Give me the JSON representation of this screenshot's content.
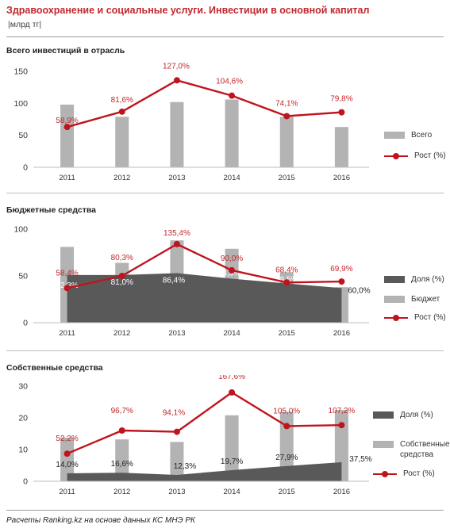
{
  "title": "Здравоохранение и социальные услуги. Инвестиции в основной капитал",
  "units": "|млрд тг|",
  "footer": "Расчеты Ranking.kz на основе данных КС МНЭ РК",
  "colors": {
    "title": "#c0282d",
    "bar": "#b3b3b3",
    "area": "#595959",
    "line": "#c0141d",
    "growth_label": "#c0282d",
    "share_label_inside": "#ffffff",
    "share_label_outside": "#222222"
  },
  "chart_data": [
    {
      "type": "bar",
      "title": "Всего инвестиций в отрасль",
      "categories": [
        "2011",
        "2012",
        "2013",
        "2014",
        "2015",
        "2016"
      ],
      "ylim": [
        0,
        150
      ],
      "yticks": [
        "0",
        "50",
        "100",
        "150"
      ],
      "legend_position": "right",
      "series": [
        {
          "name": "Всего",
          "kind": "bar",
          "values": [
            98,
            79,
            102,
            106,
            79,
            63
          ]
        },
        {
          "name": "Рост (%)",
          "kind": "line",
          "values": [
            63,
            87,
            136,
            112,
            80,
            86
          ],
          "labels": [
            "58,9%",
            "81,6%",
            "127,0%",
            "104,6%",
            "74,1%",
            "79,8%"
          ]
        }
      ]
    },
    {
      "type": "bar",
      "title": "Бюджетные средства",
      "categories": [
        "2011",
        "2012",
        "2013",
        "2014",
        "2015",
        "2016"
      ],
      "ylim": [
        0,
        100
      ],
      "yticks": [
        "0",
        "50",
        "100"
      ],
      "legend_position": "right",
      "series": [
        {
          "name": "Доля (%)",
          "kind": "area",
          "values": [
            51,
            51,
            53,
            47,
            42,
            37
          ],
          "labels": [
            "82,3%",
            "81,0%",
            "86,4%",
            "74,3%",
            "68,5%",
            "60,0%"
          ]
        },
        {
          "name": "Бюджет",
          "kind": "bar",
          "values": [
            81,
            64,
            88,
            79,
            54,
            38
          ]
        },
        {
          "name": "Рост (%)",
          "kind": "line",
          "values": [
            37,
            50,
            84,
            56,
            43,
            44
          ],
          "labels": [
            "58,4%",
            "80,3%",
            "135,4%",
            "90,0%",
            "68,4%",
            "69,9%"
          ]
        }
      ]
    },
    {
      "type": "bar",
      "title": "Собственные средства",
      "categories": [
        "2011",
        "2012",
        "2013",
        "2014",
        "2015",
        "2016"
      ],
      "ylim": [
        0,
        30
      ],
      "yticks": [
        "0",
        "10",
        "20",
        "30"
      ],
      "legend_position": "right",
      "series": [
        {
          "name": "Доля (%)",
          "kind": "area",
          "values": [
            2.5,
            2.7,
            2.0,
            3.5,
            4.8,
            6.0
          ],
          "labels": [
            "14,0%",
            "16,6%",
            "12,3%",
            "19,7%",
            "27,9%",
            "37,5%"
          ]
        },
        {
          "name": "Собственные средства",
          "kind": "bar",
          "values": [
            13.8,
            13.2,
            12.4,
            20.8,
            21.9,
            22.5
          ]
        },
        {
          "name": "Рост (%)",
          "kind": "line",
          "values": [
            8.7,
            16.0,
            15.6,
            28.0,
            17.4,
            17.7
          ],
          "labels": [
            "52,2%",
            "96,7%",
            "94,1%",
            "167,6%",
            "105,0%",
            "107,2%"
          ]
        }
      ]
    }
  ]
}
